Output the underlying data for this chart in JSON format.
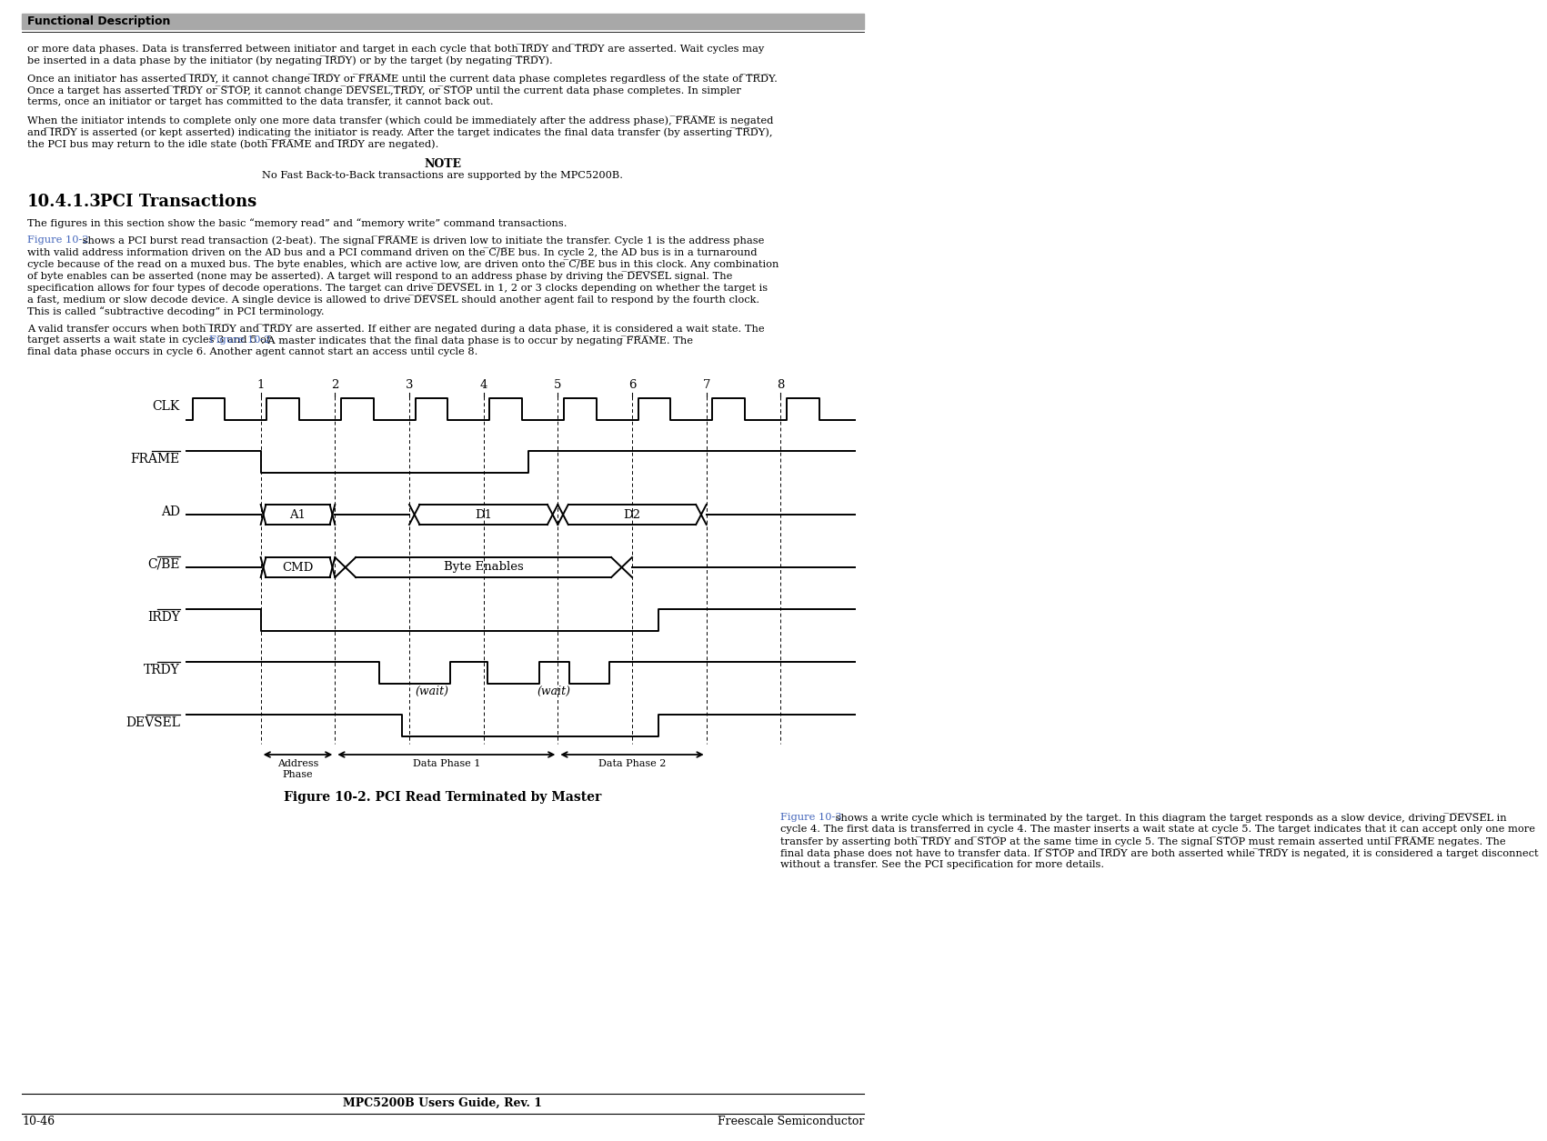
{
  "header_text": "Functional Description",
  "para1_l1": "or more data phases. Data is transferred between initiator and target in each cycle that both ̅I̅R̅D̅Y and ̅T̅R̅D̅Y are asserted. Wait cycles may",
  "para1_l2": "be inserted in a data phase by the initiator (by negating ̅I̅R̅D̅Y) or by the target (by negating ̅T̅R̅D̅Y).",
  "para2_l1": "Once an initiator has asserted ̅I̅R̅D̅Y, it cannot change ̅I̅R̅D̅Y or ̅F̅R̅A̅M̅E until the current data phase completes regardless of the state of ̅T̅R̅D̅Y.",
  "para2_l2": "Once a target has asserted ̅T̅R̅D̅Y or ̅S̅T̅O̅P, it cannot change ̅D̅E̅V̅S̅E̅L,̅T̅R̅D̅Y, or ̅S̅T̅O̅P until the current data phase completes. In simpler",
  "para2_l3": "terms, once an initiator or target has committed to the data transfer, it cannot back out.",
  "para3_l1": "When the initiator intends to complete only one more data transfer (which could be immediately after the address phase), ̅F̅R̅A̅M̅E is negated",
  "para3_l2": "and ̅I̅R̅D̅Y is asserted (or kept asserted) indicating the initiator is ready. After the target indicates the final data transfer (by asserting ̅T̅R̅D̅Y),",
  "para3_l3": "the PCI bus may return to the idle state (both ̅F̅R̅A̅M̅E and ̅I̅R̅D̅Y are negated).",
  "note_title": "NOTE",
  "note_text": "No Fast Back-to-Back transactions are supported by the MPC5200B.",
  "sec_heading": "10.4.1.3",
  "sec_title": "PCI Transactions",
  "sec_para": "The figures in this section show the basic “memory read” and “memory write” command transactions.",
  "fig2_ref1": "Figure 10-2",
  "fig2_l1": " shows a PCI burst read transaction (2-beat). The signal ̅F̅R̅A̅M̅E is driven low to initiate the transfer. Cycle 1 is the address phase",
  "fig2_l2": "with valid address information driven on the AD bus and a PCI command driven on the ̅C̅/̅B̅E bus. In cycle 2, the AD bus is in a turnaround",
  "fig2_l3": "cycle because of the read on a muxed bus. The byte enables, which are active low, are driven onto the ̅C̅/̅B̅E bus in this clock. Any combination",
  "fig2_l4": "of byte enables can be asserted (none may be asserted). A target will respond to an address phase by driving the ̅D̅E̅V̅S̅E̅L signal. The",
  "fig2_l5": "specification allows for four types of decode operations. The target can drive ̅D̅E̅V̅S̅E̅L in 1, 2 or 3 clocks depending on whether the target is",
  "fig2_l6": "a fast, medium or slow decode device. A single device is allowed to drive ̅D̅E̅V̅S̅E̅L should another agent fail to respond by the fourth clock.",
  "fig2_l7": "This is called “subtractive decoding” in PCI terminology.",
  "para4_l1": "A valid transfer occurs when both ̅I̅R̅D̅Y and ̅T̅R̅D̅Y are asserted. If either are negated during a data phase, it is considered a wait state. The",
  "para4_l2a": "target asserts a wait state in cycles 3 and 5 of ",
  "para4_l2b": "Figure 10-2",
  "para4_l2c": ". A master indicates that the final data phase is to occur by negating ̅F̅R̅A̅M̅E. The",
  "para4_l3": "final data phase occurs in cycle 6. Another agent cannot start an access until cycle 8.",
  "fig_caption": "Figure 10-2. PCI Read Terminated by Master",
  "after_l1a": "Figure 10-3",
  "after_l1b": " shows a write cycle which is terminated by the target. In this diagram the target responds as a slow device, driving ̅D̅E̅V̅S̅E̅L in",
  "after_l2": "cycle 4. The first data is transferred in cycle 4. The master inserts a wait state at cycle 5. The target indicates that it can accept only one more",
  "after_l3": "transfer by asserting both ̅T̅R̅D̅Y and ̅S̅T̅O̅P at the same time in cycle 5. The signal ̅S̅T̅O̅P must remain asserted until ̅F̅R̅A̅M̅E negates. The",
  "after_l4": "final data phase does not have to transfer data. If ̅S̅T̅O̅P and ̅I̅R̅D̅Y are both asserted while ̅T̅R̅D̅Y is negated, it is considered a target disconnect",
  "after_l5": "without a transfer. See the PCI specification for more details.",
  "footer_center": "MPC5200B Users Guide, Rev. 1",
  "footer_left": "10-46",
  "footer_right": "Freescale Semiconductor",
  "link_color": "#4466bb",
  "text_color": "#000000",
  "header_color": "#a8a8a8"
}
